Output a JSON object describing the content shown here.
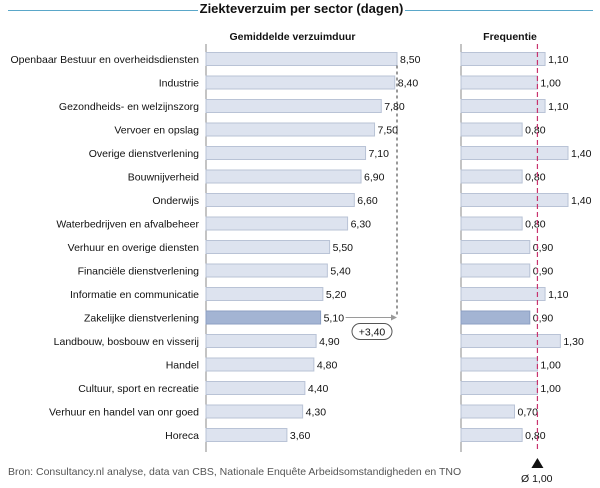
{
  "title": "Ziekteverzuim per sector (dagen)",
  "chart_data": [
    {
      "type": "bar",
      "orientation": "horizontal",
      "title": "Gemiddelde verzuimduur",
      "categories": [
        "Openbaar Bestuur en overheidsdiensten",
        "Industrie",
        "Gezondheids- en welzijnszorg",
        "Vervoer en opslag",
        "Overige dienstverlening",
        "Bouwnijverheid",
        "Onderwijs",
        "Waterbedrijven en afvalbeheer",
        "Verhuur en overige diensten",
        "Financiële dienstverlening",
        "Informatie en communicatie",
        "Zakelijke dienstverlening",
        "Landbouw, bosbouw en visserij",
        "Handel",
        "Cultuur, sport en recreatie",
        "Verhuur en handel van onr goed",
        "Horeca"
      ],
      "values": [
        8.5,
        8.4,
        7.8,
        7.5,
        7.1,
        6.9,
        6.6,
        6.3,
        5.5,
        5.4,
        5.2,
        5.1,
        4.9,
        4.8,
        4.4,
        4.3,
        3.6
      ],
      "value_labels": [
        "8,50",
        "8,40",
        "7,80",
        "7,50",
        "7,10",
        "6,90",
        "6,60",
        "6,30",
        "5,50",
        "5,40",
        "5,20",
        "5,10",
        "4,90",
        "4,80",
        "4,40",
        "4,30",
        "3,60"
      ],
      "highlight_category": "Zakelijke dienstverlening",
      "annotation": "+3,40",
      "colors": {
        "bar": "#dde3ef",
        "bar_border": "#b9c3d6",
        "highlight": "#a3b4d3",
        "highlight_border": "#8c9fc3"
      }
    },
    {
      "type": "bar",
      "orientation": "horizontal",
      "title": "Frequentie",
      "values": [
        1.1,
        1.0,
        1.1,
        0.8,
        1.4,
        0.8,
        1.4,
        0.8,
        0.9,
        0.9,
        1.1,
        0.9,
        1.3,
        1.0,
        1.0,
        0.7,
        0.8
      ],
      "value_labels": [
        "1,10",
        "1,00",
        "1,10",
        "0,80",
        "1,40",
        "0,80",
        "1,40",
        "0,80",
        "0,90",
        "0,90",
        "1,10",
        "0,90",
        "1,30",
        "1,00",
        "1,00",
        "0,70",
        "0,80"
      ],
      "reference_value": 1.0,
      "reference_label": "Ø 1,00",
      "colors": {
        "reference_line": "#c8336e"
      }
    }
  ],
  "source": "Bron: Consultancy.nl analyse, data van CBS, Nationale Enquête Arbeidsomstandigheden en TNO"
}
